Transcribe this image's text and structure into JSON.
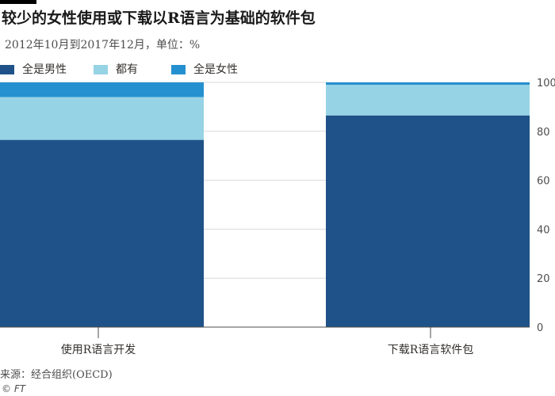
{
  "title": "较少的女性使用或下载以R语言为基础的软件包",
  "subtitle": "2012年10月到2017年12月，单位：%",
  "source": "来源：经合组织(OECD)",
  "credit": "© FT",
  "chart_data": {
    "type": "bar",
    "stacked": true,
    "categories": [
      "使用R语言开发",
      "下载R语言软件包"
    ],
    "series": [
      {
        "name": "全是男性",
        "color": "#1f5288",
        "values": [
          76.5,
          86.5
        ]
      },
      {
        "name": "都有",
        "color": "#96d3e5",
        "values": [
          17.5,
          12.5
        ]
      },
      {
        "name": "全是女性",
        "color": "#2590d0",
        "values": [
          6,
          1
        ]
      }
    ],
    "ylim": [
      0,
      100
    ],
    "yticks": [
      0,
      20,
      40,
      60,
      80,
      100
    ],
    "ytick_labels": [
      "0",
      "20",
      "40",
      "60",
      "80",
      "100"
    ],
    "grid": true,
    "legend_position": "top-left",
    "y_axis_side": "right"
  }
}
